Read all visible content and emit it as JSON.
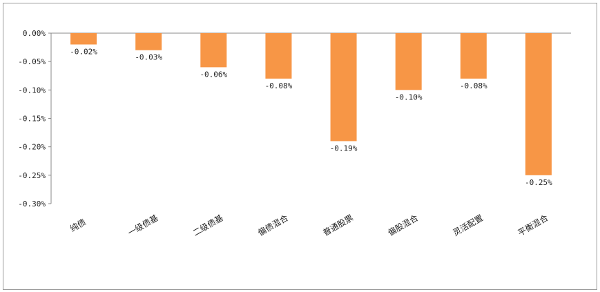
{
  "chart_data": {
    "type": "bar",
    "title": "",
    "xlabel": "",
    "ylabel": "",
    "categories": [
      "纯债",
      "一级债基",
      "二级债基",
      "偏债混合",
      "普通股票",
      "偏股混合",
      "灵活配置",
      "平衡混合"
    ],
    "values": [
      -0.0002,
      -0.0003,
      -0.0006,
      -0.0008,
      -0.0019,
      -0.001,
      -0.0008,
      -0.0025
    ],
    "data_labels": [
      "-0.02%",
      "-0.03%",
      "-0.06%",
      "-0.08%",
      "-0.19%",
      "-0.10%",
      "-0.08%",
      "-0.25%"
    ],
    "ylim": [
      -0.003,
      0.0
    ],
    "yticks": [
      0,
      -0.0005,
      -0.001,
      -0.0015,
      -0.002,
      -0.0025,
      -0.003
    ],
    "ytick_labels": [
      "0.00%",
      "-0.05%",
      "-0.10%",
      "-0.15%",
      "-0.20%",
      "-0.25%",
      "-0.30%"
    ],
    "bar_color": "#F79646",
    "axis_color": "#888888",
    "grid": false,
    "legend": "none"
  }
}
